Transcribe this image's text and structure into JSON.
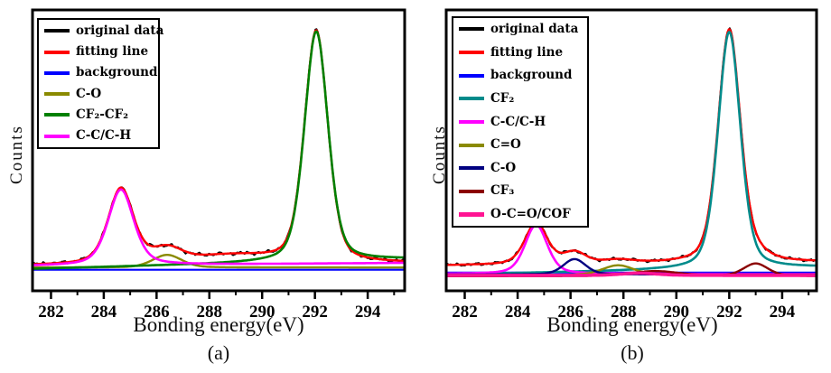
{
  "figure": {
    "description": "Two fitted XPS C1s spectra panels",
    "panels": [
      "(a)",
      "(b)"
    ]
  },
  "chart_data": [
    {
      "type": "line",
      "id": "a",
      "panel_label": "(a)",
      "xlabel": "Bonding energy(eV)",
      "ylabel": "Counts",
      "x_range": [
        281.3,
        295.4
      ],
      "x_ticks": [
        282,
        284,
        286,
        288,
        290,
        292,
        294
      ],
      "x_minor_ticks": [
        283,
        285,
        287,
        289,
        291,
        293,
        295
      ],
      "ylim": [
        0,
        1
      ],
      "grid": false,
      "legend_position": "top-left",
      "frame": {
        "l": 36,
        "t": 11,
        "r": 448,
        "b": 322
      },
      "series": [
        {
          "name": "original-data",
          "label": "original data",
          "color": "#000000",
          "lw": 2.0,
          "baseline": 0.09,
          "slope": 0.0006,
          "noise": 0.006,
          "peaks": [
            {
              "c": 284.65,
              "h": 0.27,
              "w": 1.15,
              "m": 0.45
            },
            {
              "c": 286.4,
              "h": 0.045,
              "w": 1.3
            },
            {
              "c": 288.8,
              "h": 0.028,
              "w": 4.0
            },
            {
              "c": 292.05,
              "h": 0.825,
              "w": 1.05,
              "m": 0.35
            }
          ]
        },
        {
          "name": "fitting-line",
          "label": "fitting line",
          "color": "#FF0000",
          "lw": 2.4,
          "baseline": 0.09,
          "slope": 0.0006,
          "noise": 0,
          "peaks": [
            {
              "c": 284.65,
              "h": 0.27,
              "w": 1.15,
              "m": 0.45
            },
            {
              "c": 286.4,
              "h": 0.045,
              "w": 1.3
            },
            {
              "c": 288.8,
              "h": 0.028,
              "w": 4.0
            },
            {
              "c": 292.05,
              "h": 0.825,
              "w": 1.05,
              "m": 0.35
            }
          ]
        },
        {
          "name": "background",
          "label": "background",
          "color": "#0000FF",
          "lw": 2.2,
          "baseline": 0.075,
          "slope": 0,
          "noise": 0,
          "peaks": []
        },
        {
          "name": "c-o",
          "label": "C-O",
          "color": "#8A8A00",
          "lw": 2.4,
          "baseline": 0.083,
          "slope": 0,
          "noise": 0,
          "peaks": [
            {
              "c": 286.4,
              "h": 0.045,
              "w": 1.3
            }
          ]
        },
        {
          "name": "cf2-cf2",
          "label": "CF₂-CF₂",
          "color": "#008000",
          "lw": 2.6,
          "baseline": 0.078,
          "slope": 0.0024,
          "noise": 0,
          "peaks": [
            {
              "c": 292.05,
              "h": 0.82,
              "w": 1.05,
              "m": 0.35
            }
          ]
        },
        {
          "name": "c-c-c-h",
          "label": "C-C/C-H",
          "color": "#FF00FF",
          "lw": 2.6,
          "baseline": 0.088,
          "slope": 0.0008,
          "noise": 0,
          "peaks": [
            {
              "c": 284.65,
              "h": 0.27,
              "w": 1.15,
              "m": 0.45
            }
          ]
        }
      ]
    },
    {
      "type": "line",
      "id": "b",
      "panel_label": "(b)",
      "xlabel": "Bonding energy(eV)",
      "ylabel": "Counts",
      "x_range": [
        281.3,
        295.3
      ],
      "x_ticks": [
        282,
        284,
        286,
        288,
        290,
        292,
        294
      ],
      "x_minor_ticks": [
        283,
        285,
        287,
        289,
        291,
        293,
        295
      ],
      "ylim": [
        0,
        1
      ],
      "grid": false,
      "legend_position": "top-left",
      "frame": {
        "l": 34,
        "t": 11,
        "r": 444,
        "b": 322
      },
      "series": [
        {
          "name": "original-data",
          "label": "original data",
          "color": "#000000",
          "lw": 2.0,
          "baseline": 0.09,
          "slope": 0.0008,
          "noise": 0.005,
          "peaks": [
            {
              "c": 284.7,
              "h": 0.148,
              "w": 1.0,
              "m": 0.4
            },
            {
              "c": 286.15,
              "h": 0.04,
              "w": 1.0
            },
            {
              "c": 287.8,
              "h": 0.012,
              "w": 1.4
            },
            {
              "c": 292.0,
              "h": 0.83,
              "w": 1.0,
              "m": 0.35
            },
            {
              "c": 293.0,
              "h": 0.02,
              "w": 1.1
            }
          ]
        },
        {
          "name": "fitting-line",
          "label": "fitting line",
          "color": "#FF0000",
          "lw": 2.4,
          "baseline": 0.09,
          "slope": 0.0008,
          "noise": 0,
          "peaks": [
            {
              "c": 284.7,
              "h": 0.148,
              "w": 1.0,
              "m": 0.4
            },
            {
              "c": 286.15,
              "h": 0.04,
              "w": 1.0
            },
            {
              "c": 287.8,
              "h": 0.012,
              "w": 1.4
            },
            {
              "c": 292.0,
              "h": 0.83,
              "w": 1.0,
              "m": 0.35
            },
            {
              "c": 293.0,
              "h": 0.02,
              "w": 1.1
            }
          ]
        },
        {
          "name": "background",
          "label": "background",
          "color": "#0000FF",
          "lw": 2.2,
          "baseline": 0.065,
          "slope": 0,
          "noise": 0,
          "peaks": []
        },
        {
          "name": "cf2",
          "label": "CF₂",
          "color": "#008B8B",
          "lw": 2.6,
          "baseline": 0.058,
          "slope": 0.0018,
          "noise": 0,
          "peaks": [
            {
              "c": 292.0,
              "h": 0.845,
              "w": 1.0,
              "m": 0.35
            }
          ]
        },
        {
          "name": "c-c-c-h",
          "label": "C-C/C-H",
          "color": "#FF00FF",
          "lw": 2.6,
          "baseline": 0.06,
          "slope": 0,
          "noise": 0,
          "peaks": [
            {
              "c": 284.7,
              "h": 0.175,
              "w": 1.0,
              "m": 0.4
            }
          ]
        },
        {
          "name": "c-double-o",
          "label": "C=O",
          "color": "#8A8A00",
          "lw": 2.4,
          "baseline": 0.056,
          "slope": 0,
          "noise": 0,
          "peaks": [
            {
              "c": 287.8,
              "h": 0.035,
              "w": 1.4
            }
          ]
        },
        {
          "name": "c-o",
          "label": "C-O",
          "color": "#000080",
          "lw": 2.4,
          "baseline": 0.058,
          "slope": 0,
          "noise": 0,
          "peaks": [
            {
              "c": 286.15,
              "h": 0.055,
              "w": 1.0
            }
          ]
        },
        {
          "name": "cf3",
          "label": "CF₃",
          "color": "#8B0000",
          "lw": 2.4,
          "baseline": 0.052,
          "slope": 0,
          "noise": 0,
          "peaks": [
            {
              "c": 289.2,
              "h": 0.018,
              "w": 2.2
            },
            {
              "c": 293.0,
              "h": 0.045,
              "w": 1.1
            }
          ]
        },
        {
          "name": "o-c-o-cof",
          "label": "O-C=O/COF",
          "color": "#FF1493",
          "lw": 3.6,
          "baseline": 0.055,
          "slope": 0,
          "noise": 0,
          "peaks": [
            {
              "c": 288.6,
              "h": 0.008,
              "w": 1.6
            }
          ]
        }
      ]
    }
  ]
}
